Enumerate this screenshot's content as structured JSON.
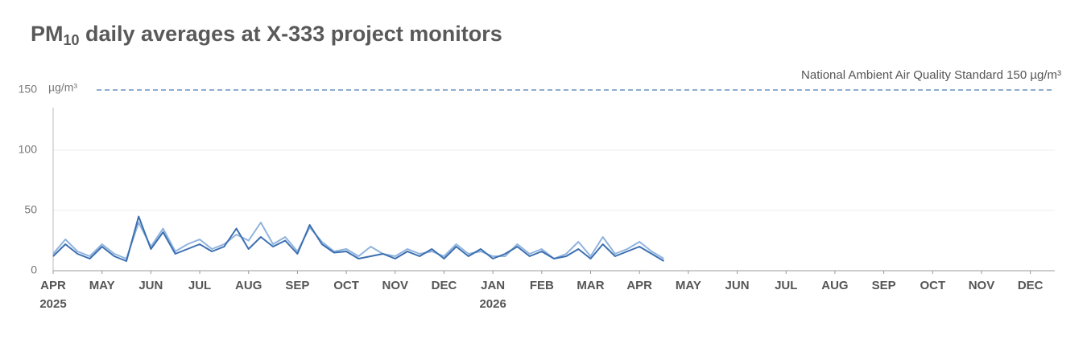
{
  "chart_data": {
    "type": "line",
    "title": {
      "main": "PM",
      "subscript": "10",
      "rest": " daily averages at X-333 project monitors"
    },
    "y_unit": "µg/m³",
    "reference_line": {
      "value": 150,
      "label": "National Ambient Air Quality Standard 150 µg/m³",
      "color": "#4a7bb5"
    },
    "xlim": [
      0,
      20.5
    ],
    "xticks": [
      {
        "value": 0,
        "label": "APR"
      },
      {
        "value": 1,
        "label": "MAY"
      },
      {
        "value": 2,
        "label": "JUN"
      },
      {
        "value": 3,
        "label": "JUL"
      },
      {
        "value": 4,
        "label": "AUG"
      },
      {
        "value": 5,
        "label": "SEP"
      },
      {
        "value": 6,
        "label": "OCT"
      },
      {
        "value": 7,
        "label": "NOV"
      },
      {
        "value": 8,
        "label": "DEC"
      },
      {
        "value": 9,
        "label": "JAN"
      },
      {
        "value": 10,
        "label": "FEB"
      },
      {
        "value": 11,
        "label": "MAR"
      },
      {
        "value": 12,
        "label": "APR"
      },
      {
        "value": 13,
        "label": "MAY"
      },
      {
        "value": 14,
        "label": "JUN"
      },
      {
        "value": 15,
        "label": "JUL"
      },
      {
        "value": 16,
        "label": "AUG"
      },
      {
        "value": 17,
        "label": "SEP"
      },
      {
        "value": 18,
        "label": "OCT"
      },
      {
        "value": 19,
        "label": "NOV"
      },
      {
        "value": 20,
        "label": "DEC"
      }
    ],
    "year_labels": [
      {
        "value": 0,
        "label": "2025"
      },
      {
        "value": 9,
        "label": "2026"
      }
    ],
    "ylim": [
      0,
      150
    ],
    "yticks": [
      0,
      50,
      100,
      150
    ],
    "grid": true,
    "x": [
      0,
      0.25,
      0.5,
      0.75,
      1,
      1.25,
      1.5,
      1.75,
      2,
      2.25,
      2.5,
      2.75,
      3,
      3.25,
      3.5,
      3.75,
      4,
      4.25,
      4.5,
      4.75,
      5,
      5.25,
      5.5,
      5.75,
      6,
      6.25,
      6.5,
      6.75,
      7,
      7.25,
      7.5,
      7.75,
      8,
      8.25,
      8.5,
      8.75,
      9,
      9.25,
      9.5,
      9.75,
      10,
      10.25,
      10.5,
      10.75,
      11,
      11.25,
      11.5,
      11.75,
      12,
      12.25,
      12.5
    ],
    "series": [
      {
        "color": "#8fb3dd",
        "values": [
          14,
          26,
          16,
          12,
          22,
          14,
          10,
          40,
          20,
          35,
          16,
          22,
          26,
          18,
          22,
          30,
          25,
          40,
          22,
          28,
          16,
          36,
          24,
          16,
          18,
          12,
          20,
          14,
          12,
          18,
          14,
          16,
          12,
          22,
          14,
          16,
          12,
          12,
          22,
          14,
          18,
          10,
          14,
          24,
          12,
          28,
          14,
          18,
          24,
          16,
          10
        ]
      },
      {
        "color": "#3b6fb0",
        "values": [
          12,
          22,
          14,
          10,
          20,
          12,
          8,
          45,
          18,
          32,
          14,
          18,
          22,
          16,
          20,
          35,
          18,
          28,
          20,
          25,
          14,
          38,
          22,
          15,
          16,
          10,
          12,
          14,
          10,
          16,
          12,
          18,
          10,
          20,
          12,
          18,
          10,
          14,
          20,
          12,
          16,
          10,
          12,
          18,
          10,
          22,
          12,
          16,
          20,
          14,
          8
        ]
      }
    ]
  }
}
